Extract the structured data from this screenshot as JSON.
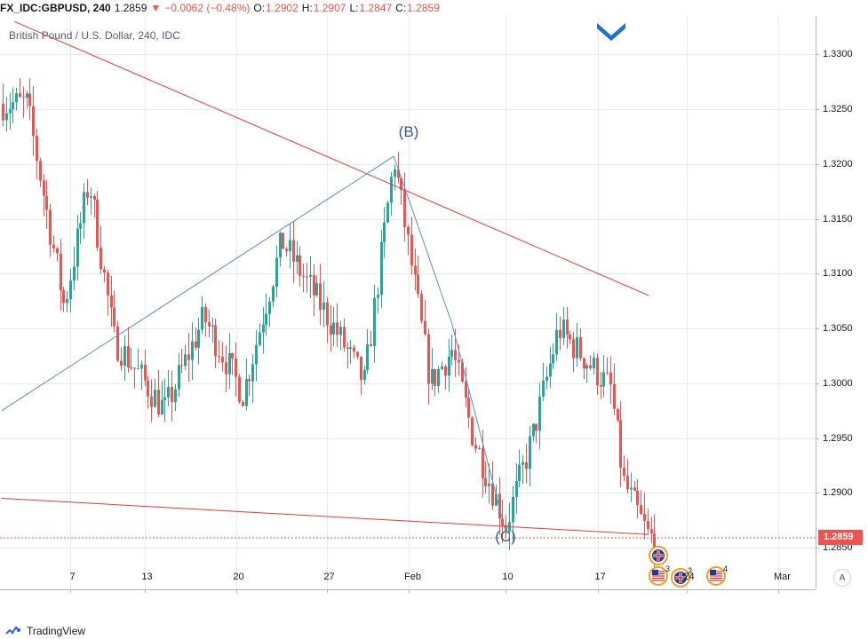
{
  "header": {
    "symbol": "FX_IDC:GBPUSD, 240",
    "last": "1.2859",
    "change": "−0.0062 (−0.48%)",
    "o_label": "O:",
    "o_value": "1.2902",
    "h_label": "H:",
    "h_value": "1.2907",
    "l_label": "L:",
    "l_value": "1.2847",
    "c_label": "C:",
    "c_value": "1.2859",
    "change_arrow_icon": "triangle-down-icon"
  },
  "subtitle": "British Pound / U.S. Dollar, 240, IDC",
  "footer": {
    "brand": "TradingView",
    "auto_label": "A"
  },
  "colors": {
    "up": "#26a69a",
    "down": "#ef5350",
    "trendline": "#e53935",
    "wave": "#5b8cc7",
    "grid": "#e6eaf0",
    "marker": "#1e6ed8"
  },
  "last_price_label": "1.2859",
  "wave_labels": [
    "(B)",
    "(C)"
  ],
  "chart_data": {
    "type": "candlestick",
    "title": "British Pound / U.S. Dollar, 240, IDC",
    "timeframe": "240",
    "ylim": [
      1.2812,
      1.3335
    ],
    "y_ticks": [
      "1.3300",
      "1.3250",
      "1.3200",
      "1.3150",
      "1.3100",
      "1.3050",
      "1.3000",
      "1.2950",
      "1.2900",
      "1.2850"
    ],
    "x_ticks": [
      "7",
      "13",
      "20",
      "27",
      "Feb",
      "10",
      "17",
      "24",
      "Mar"
    ],
    "grid": true,
    "last_price": 1.2859,
    "ohlc_waypoints": [
      {
        "date": "Jan 3",
        "price": 1.3255
      },
      {
        "date": "Jan 6",
        "price": 1.307
      },
      {
        "date": "Jan 8",
        "price": 1.3185
      },
      {
        "date": "Jan 10",
        "price": 1.304
      },
      {
        "date": "Jan 14",
        "price": 1.2975
      },
      {
        "date": "Jan 17",
        "price": 1.306
      },
      {
        "date": "Jan 20",
        "price": 1.299
      },
      {
        "date": "Jan 23",
        "price": 1.313
      },
      {
        "date": "Jan 27",
        "price": 1.305
      },
      {
        "date": "Jan 29",
        "price": 1.3
      },
      {
        "date": "Jan 31",
        "price": 1.3205
      },
      {
        "date": "Feb 3",
        "price": 1.3
      },
      {
        "date": "Feb 5",
        "price": 1.303
      },
      {
        "date": "Feb 7",
        "price": 1.295
      },
      {
        "date": "Feb 10",
        "price": 1.287
      },
      {
        "date": "Feb 12",
        "price": 1.295
      },
      {
        "date": "Feb 14",
        "price": 1.305
      },
      {
        "date": "Feb 18",
        "price": 1.2995
      },
      {
        "date": "Feb 19",
        "price": 1.291
      },
      {
        "date": "Feb 21",
        "price": 1.2859
      }
    ],
    "annotations": [
      {
        "label": "(B)",
        "date": "Jan 31",
        "price": 1.3207
      },
      {
        "label": "(C)",
        "date": "Feb 10",
        "price": 1.2865
      }
    ],
    "trendlines": [
      {
        "name": "upper",
        "from": {
          "date": "Jan 2",
          "price": 1.333
        },
        "to": {
          "date": "Feb 21",
          "price": 1.308
        }
      },
      {
        "name": "lower",
        "from": {
          "date": "Jan 1",
          "price": 1.2895
        },
        "to": {
          "date": "Feb 21",
          "price": 1.2862
        }
      },
      {
        "name": "B-wave",
        "from": {
          "date": "Jan 1",
          "price": 1.2975
        },
        "to": {
          "date": "Jan 31",
          "price": 1.3207
        }
      },
      {
        "name": "C-wave",
        "points": [
          {
            "date": "Jan 31",
            "price": 1.3207
          },
          {
            "date": "Feb 5",
            "price": 1.3055
          },
          {
            "date": "Feb 10",
            "price": 1.2865
          }
        ]
      }
    ],
    "events": [
      {
        "date": "Feb 21",
        "flag": "GB",
        "count": ""
      },
      {
        "date": "Feb 21",
        "flag": "US",
        "count": "3"
      },
      {
        "date": "Feb 21",
        "flag": "GB",
        "count": "3"
      },
      {
        "date": "Feb 24",
        "flag": "US",
        "count": "4"
      }
    ]
  }
}
